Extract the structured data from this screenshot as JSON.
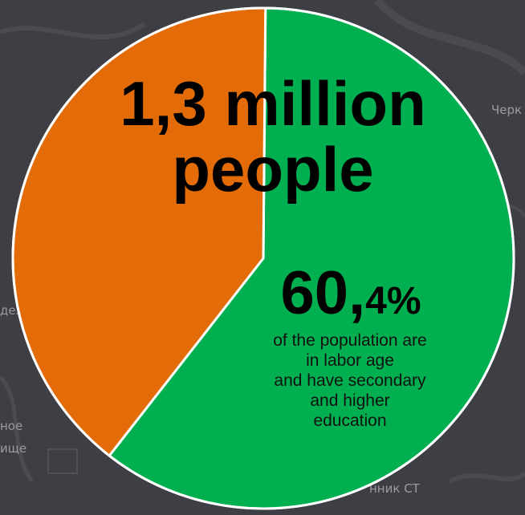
{
  "chart_data": {
    "type": "pie",
    "series": [
      {
        "value": 60.4
      },
      {
        "value": 39.6
      }
    ],
    "colors": [
      "#00b050",
      "#e36c09"
    ],
    "border_color": "#ffffff"
  },
  "headline": {
    "line1": "1,3 million",
    "line2": "people"
  },
  "percent": {
    "whole": "60,",
    "fraction": "4%"
  },
  "description": {
    "lines": [
      "of the population are",
      "in labor age",
      "and have secondary",
      "and higher",
      "education"
    ]
  },
  "map_labels": [
    "Черк",
    "деж",
    "ное",
    "ище",
    "нник СТ"
  ]
}
